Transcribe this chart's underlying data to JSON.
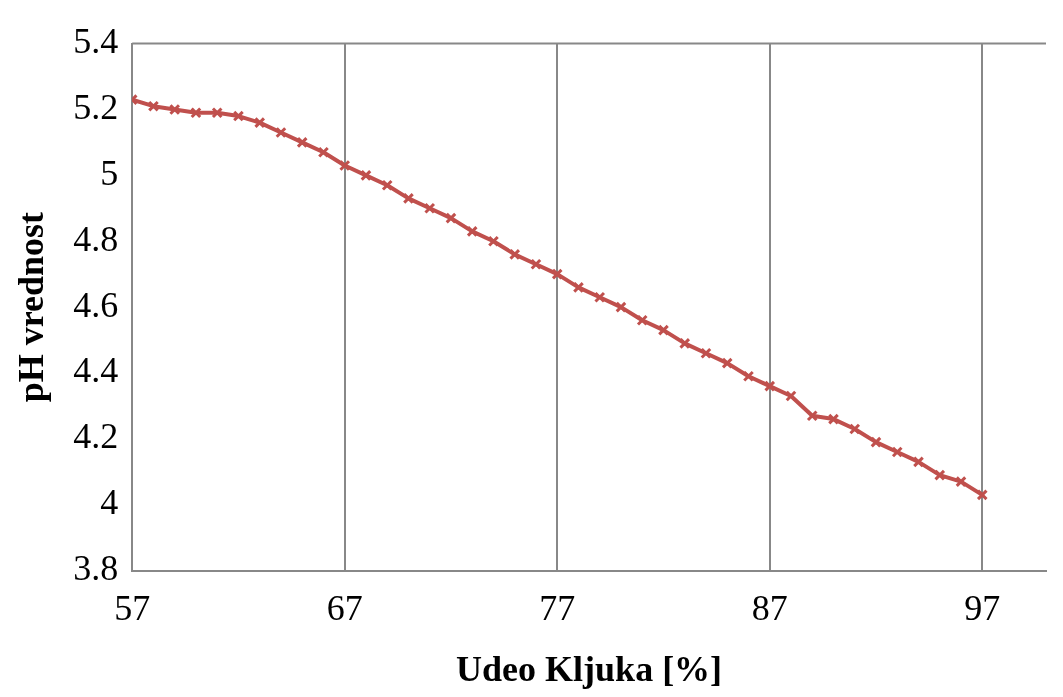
{
  "chart_data": {
    "type": "line",
    "xlabel": "Udeo Kljuka [%]",
    "ylabel": "pH vrednost",
    "x": [
      57,
      58,
      59,
      60,
      61,
      62,
      63,
      64,
      65,
      66,
      67,
      68,
      69,
      70,
      71,
      72,
      73,
      74,
      75,
      76,
      77,
      78,
      79,
      80,
      81,
      82,
      83,
      84,
      85,
      86,
      87,
      88,
      89,
      90,
      91,
      92,
      93,
      94,
      95,
      96,
      97
    ],
    "series": [
      {
        "color": "#c0504d",
        "values": [
          5.23,
          5.21,
          5.2,
          5.19,
          5.19,
          5.18,
          5.16,
          5.13,
          5.1,
          5.07,
          5.03,
          5.0,
          4.97,
          4.93,
          4.9,
          4.87,
          4.83,
          4.8,
          4.76,
          4.73,
          4.7,
          4.66,
          4.63,
          4.6,
          4.56,
          4.53,
          4.49,
          4.46,
          4.43,
          4.39,
          4.36,
          4.33,
          4.27,
          4.26,
          4.23,
          4.19,
          4.16,
          4.13,
          4.09,
          4.07,
          4.03
        ]
      }
    ],
    "xlim": [
      57,
      100
    ],
    "xticks": [
      57,
      67,
      77,
      87,
      97
    ],
    "ylim": [
      3.8,
      5.4
    ],
    "yticks": [
      3.8,
      4,
      4.2,
      4.4,
      4.6,
      4.8,
      5,
      5.2,
      5.4
    ],
    "grid": "x",
    "legend": false,
    "marker": "cross",
    "line_style": "solid"
  }
}
